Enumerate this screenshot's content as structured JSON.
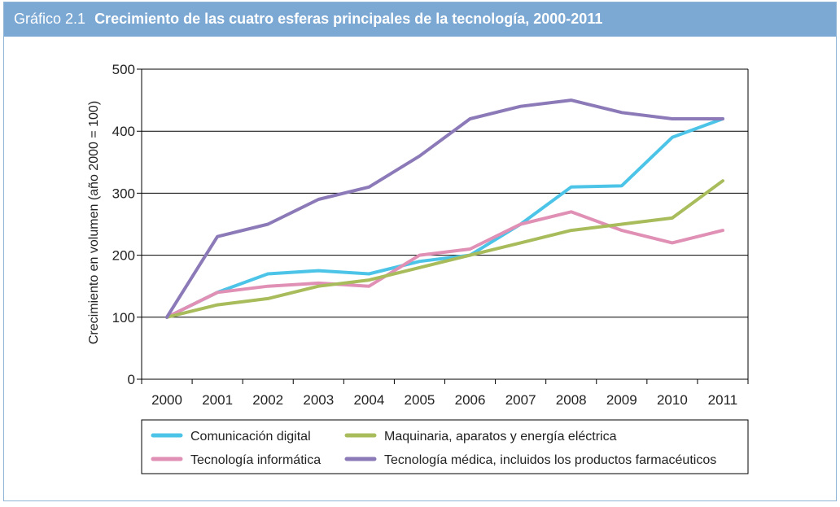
{
  "header": {
    "figure_number": "Gráfico 2.1",
    "title": "Crecimiento de las cuatro esferas principales de la tecnología, 2000-2011"
  },
  "colors": {
    "header_bg": "#7ca8d4",
    "grid": "#000000"
  },
  "chart_data": {
    "type": "line",
    "title": "Crecimiento de las cuatro esferas principales de la tecnología, 2000-2011",
    "xlabel": "",
    "ylabel": "Crecimiento en volumen (año 2000 = 100)",
    "x": [
      "2000",
      "2001",
      "2002",
      "2003",
      "2004",
      "2005",
      "2006",
      "2007",
      "2008",
      "2009",
      "2010",
      "2011"
    ],
    "ylim": [
      0,
      500
    ],
    "yticks": [
      0,
      100,
      200,
      300,
      400,
      500
    ],
    "grid": "horizontal",
    "legend_position": "bottom",
    "series": [
      {
        "name": "Comunicación digital",
        "color": "#4cc4e8",
        "values": [
          100,
          140,
          170,
          175,
          170,
          190,
          200,
          250,
          310,
          312,
          390,
          420
        ]
      },
      {
        "name": "Maquinaria, aparatos y energía eléctrica",
        "color": "#a8bc5c",
        "values": [
          100,
          120,
          130,
          150,
          160,
          180,
          200,
          220,
          240,
          250,
          260,
          320
        ]
      },
      {
        "name": "Tecnología informática",
        "color": "#e090b4",
        "values": [
          100,
          140,
          150,
          155,
          150,
          200,
          210,
          250,
          270,
          240,
          220,
          240
        ]
      },
      {
        "name": "Tecnología médica, incluidos los productos farmacéuticos",
        "color": "#8c7ab8",
        "values": [
          100,
          230,
          250,
          290,
          310,
          360,
          420,
          440,
          450,
          430,
          420,
          420
        ]
      }
    ]
  }
}
